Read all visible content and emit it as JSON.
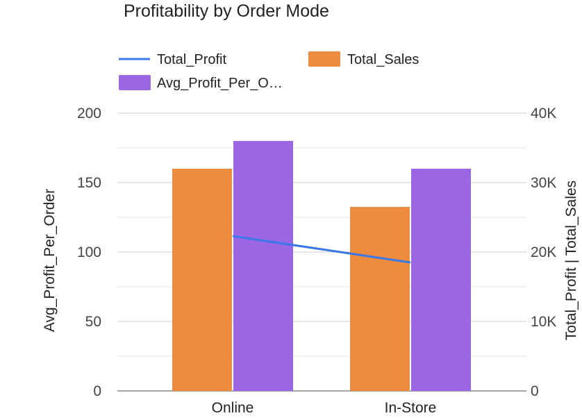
{
  "chart_data": {
    "type": "bar",
    "title": "Profitability by Order Mode",
    "categories": [
      "Online",
      "In-Store"
    ],
    "series": [
      {
        "name": "Total_Sales",
        "kind": "bar",
        "axis": "right",
        "color": "#ed8b3f",
        "values": [
          32000,
          26500
        ]
      },
      {
        "name": "Avg_Profit_Per_Order",
        "legend_label": "Avg_Profit_Per_O…",
        "kind": "bar",
        "axis": "left",
        "color": "#9b66e3",
        "values": [
          180,
          160
        ]
      },
      {
        "name": "Total_Profit",
        "kind": "line",
        "axis": "right",
        "color": "#3b78e7",
        "values": [
          22300,
          18500
        ]
      }
    ],
    "y_left": {
      "label": "Avg_Profit_Per_Order",
      "min": 0,
      "max": 200,
      "ticks": [
        "0",
        "50",
        "100",
        "150",
        "200"
      ]
    },
    "y_right": {
      "label": "Total_Profit | Total_Sales",
      "min": 0,
      "max": 40000,
      "ticks": [
        "0",
        "10K",
        "20K",
        "30K",
        "40K"
      ]
    },
    "grid": true,
    "legend_position": "top"
  }
}
